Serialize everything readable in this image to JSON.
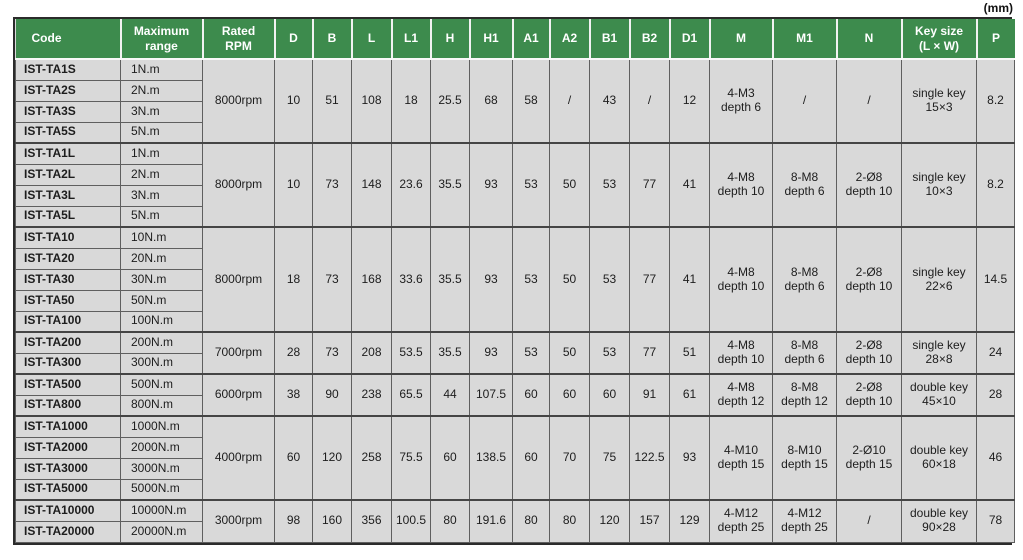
{
  "unit_label": "(mm)",
  "colors": {
    "header_bg": "#3d8b4d",
    "header_text": "#ffffff",
    "row_bg": "#d9d9d9",
    "border": "#5f5f5f"
  },
  "table": {
    "columns": [
      "Code",
      "Maximum\nrange",
      "Rated\nRPM",
      "D",
      "B",
      "L",
      "L1",
      "H",
      "H1",
      "A1",
      "A2",
      "B1",
      "B2",
      "D1",
      "M",
      "M1",
      "N",
      "Key size\n(L × W)",
      "P"
    ],
    "groups": [
      {
        "models": [
          {
            "code": "IST-TA1S",
            "range": "1N.m"
          },
          {
            "code": "IST-TA2S",
            "range": "2N.m"
          },
          {
            "code": "IST-TA3S",
            "range": "3N.m"
          },
          {
            "code": "IST-TA5S",
            "range": "5N.m"
          }
        ],
        "specs": {
          "rated_rpm": "8000rpm",
          "D": "10",
          "B": "51",
          "L": "108",
          "L1": "18",
          "H": "25.5",
          "H1": "68",
          "A1": "58",
          "A2": "/",
          "B1": "43",
          "B2": "/",
          "D1": "12",
          "M": "4-M3\ndepth 6",
          "M1": "/",
          "N": "/",
          "key_size": "single key\n15×3",
          "P": "8.2"
        }
      },
      {
        "models": [
          {
            "code": "IST-TA1L",
            "range": "1N.m"
          },
          {
            "code": "IST-TA2L",
            "range": "2N.m"
          },
          {
            "code": "IST-TA3L",
            "range": "3N.m"
          },
          {
            "code": "IST-TA5L",
            "range": "5N.m"
          }
        ],
        "specs": {
          "rated_rpm": "8000rpm",
          "D": "10",
          "B": "73",
          "L": "148",
          "L1": "23.6",
          "H": "35.5",
          "H1": "93",
          "A1": "53",
          "A2": "50",
          "B1": "53",
          "B2": "77",
          "D1": "41",
          "M": "4-M8\ndepth 10",
          "M1": "8-M8\ndepth 6",
          "N": "2-Ø8\ndepth 10",
          "key_size": "single key\n10×3",
          "P": "8.2"
        }
      },
      {
        "models": [
          {
            "code": "IST-TA10",
            "range": "10N.m"
          },
          {
            "code": "IST-TA20",
            "range": "20N.m"
          },
          {
            "code": "IST-TA30",
            "range": "30N.m"
          },
          {
            "code": "IST-TA50",
            "range": "50N.m"
          },
          {
            "code": "IST-TA100",
            "range": "100N.m"
          }
        ],
        "specs": {
          "rated_rpm": "8000rpm",
          "D": "18",
          "B": "73",
          "L": "168",
          "L1": "33.6",
          "H": "35.5",
          "H1": "93",
          "A1": "53",
          "A2": "50",
          "B1": "53",
          "B2": "77",
          "D1": "41",
          "M": "4-M8\ndepth 10",
          "M1": "8-M8\ndepth 6",
          "N": "2-Ø8\ndepth 10",
          "key_size": "single key\n22×6",
          "P": "14.5"
        }
      },
      {
        "models": [
          {
            "code": "IST-TA200",
            "range": "200N.m"
          },
          {
            "code": "IST-TA300",
            "range": "300N.m"
          }
        ],
        "specs": {
          "rated_rpm": "7000rpm",
          "D": "28",
          "B": "73",
          "L": "208",
          "L1": "53.5",
          "H": "35.5",
          "H1": "93",
          "A1": "53",
          "A2": "50",
          "B1": "53",
          "B2": "77",
          "D1": "51",
          "M": "4-M8\ndepth 10",
          "M1": "8-M8\ndepth 6",
          "N": "2-Ø8\ndepth 10",
          "key_size": "single key\n28×8",
          "P": "24"
        }
      },
      {
        "models": [
          {
            "code": "IST-TA500",
            "range": "500N.m"
          },
          {
            "code": "IST-TA800",
            "range": "800N.m"
          }
        ],
        "specs": {
          "rated_rpm": "6000rpm",
          "D": "38",
          "B": "90",
          "L": "238",
          "L1": "65.5",
          "H": "44",
          "H1": "107.5",
          "A1": "60",
          "A2": "60",
          "B1": "60",
          "B2": "91",
          "D1": "61",
          "M": "4-M8\ndepth 12",
          "M1": "8-M8\ndepth 12",
          "N": "2-Ø8\ndepth 10",
          "key_size": "double key\n45×10",
          "P": "28"
        }
      },
      {
        "models": [
          {
            "code": "IST-TA1000",
            "range": "1000N.m"
          },
          {
            "code": "IST-TA2000",
            "range": "2000N.m"
          },
          {
            "code": "IST-TA3000",
            "range": "3000N.m"
          },
          {
            "code": "IST-TA5000",
            "range": "5000N.m"
          }
        ],
        "specs": {
          "rated_rpm": "4000rpm",
          "D": "60",
          "B": "120",
          "L": "258",
          "L1": "75.5",
          "H": "60",
          "H1": "138.5",
          "A1": "60",
          "A2": "70",
          "B1": "75",
          "B2": "122.5",
          "D1": "93",
          "M": "4-M10\ndepth 15",
          "M1": "8-M10\ndepth 15",
          "N": "2-Ø10\ndepth 15",
          "key_size": "double key\n60×18",
          "P": "46"
        }
      },
      {
        "models": [
          {
            "code": "IST-TA10000",
            "range": "10000N.m"
          },
          {
            "code": "IST-TA20000",
            "range": "20000N.m"
          }
        ],
        "specs": {
          "rated_rpm": "3000rpm",
          "D": "98",
          "B": "160",
          "L": "356",
          "L1": "100.5",
          "H": "80",
          "H1": "191.6",
          "A1": "80",
          "A2": "80",
          "B1": "120",
          "B2": "157",
          "D1": "129",
          "M": "4-M12\ndepth 25",
          "M1": "4-M12\ndepth 25",
          "N": "/",
          "key_size": "double key\n90×28",
          "P": "78"
        }
      }
    ]
  }
}
